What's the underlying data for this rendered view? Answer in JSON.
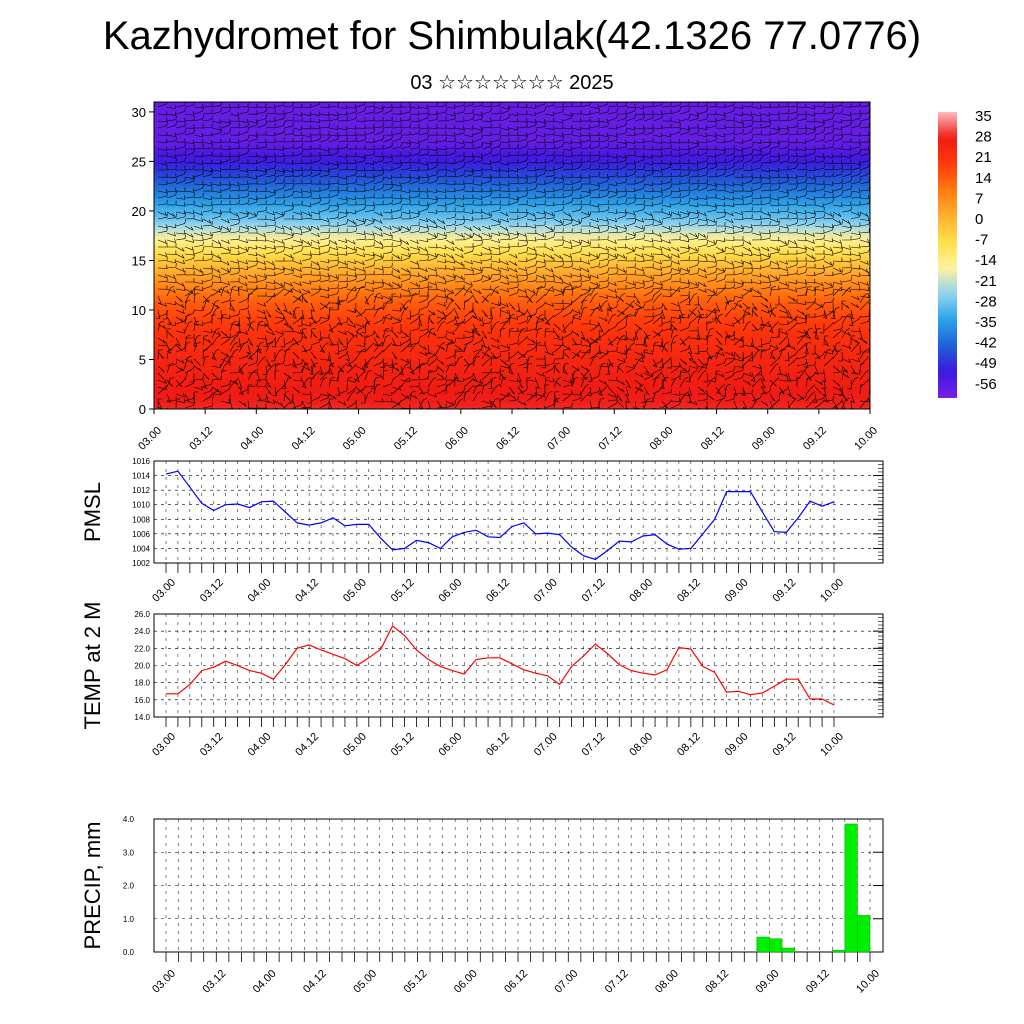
{
  "page": {
    "title": "Kazhydromet for Shimbulak(42.1326 77.0776)",
    "subtitle": "03 ☆☆☆☆☆☆☆ 2025"
  },
  "time_labels": [
    "03.00",
    "03.12",
    "04.00",
    "04.12",
    "05.00",
    "05.12",
    "06.00",
    "06.12",
    "07.00",
    "07.12",
    "08.00",
    "08.12",
    "09.00",
    "09.12",
    "10.00"
  ],
  "chart_data": [
    {
      "type": "heatmap",
      "name": "temperature-wind cross section",
      "x_ticks": [
        "03.00",
        "03.12",
        "04.00",
        "04.12",
        "05.00",
        "05.12",
        "06.00",
        "06.12",
        "07.00",
        "07.12",
        "08.00",
        "08.12",
        "09.00",
        "09.12",
        "10.00"
      ],
      "y_ticks": [
        0,
        5,
        10,
        15,
        20,
        25,
        30
      ],
      "ylim": [
        0,
        31
      ],
      "colorbar_labels": [
        "35",
        "28",
        "21",
        "14",
        "7",
        "0",
        "-7",
        "-14",
        "-21",
        "-28",
        "-35",
        "-42",
        "-49",
        "-56"
      ],
      "colorbar_range": [
        -59,
        38
      ],
      "colorscale": [
        "#7b1fe6",
        "#3b18e0",
        "#1f5fd6",
        "#2aa3e8",
        "#8fd3f0",
        "#fff2a0",
        "#ffe04a",
        "#ffb030",
        "#ff7a10",
        "#ff3a0a",
        "#ef1a14",
        "#ffbcbc"
      ],
      "height_profile_temperature": [
        {
          "height": 0,
          "value": 30
        },
        {
          "height": 4,
          "value": 27
        },
        {
          "height": 8,
          "value": 22
        },
        {
          "height": 11,
          "value": 15
        },
        {
          "height": 14,
          "value": 3
        },
        {
          "height": 16.5,
          "value": -10
        },
        {
          "height": 19,
          "value": -26
        },
        {
          "height": 22,
          "value": -38
        },
        {
          "height": 25,
          "value": -50
        },
        {
          "height": 27,
          "value": -56
        },
        {
          "height": 31,
          "value": -56
        }
      ],
      "overlay": "wind barbs"
    },
    {
      "type": "line",
      "name": "PMSL",
      "ylabel": "PMSL",
      "ylim": [
        1002,
        1016
      ],
      "y_ticks": [
        1002,
        1004,
        1006,
        1008,
        1010,
        1012,
        1014,
        1016
      ],
      "x_ticks": [
        "03.00",
        "03.12",
        "04.00",
        "04.12",
        "05.00",
        "05.12",
        "06.00",
        "06.12",
        "07.00",
        "07.12",
        "08.00",
        "08.12",
        "09.00",
        "09.12",
        "10.00"
      ],
      "color": "#0000ff",
      "series": [
        {
          "values": [
            1014.2,
            1014.6,
            1012.4,
            1010.2,
            1009.2,
            1010.0,
            1010.1,
            1009.6,
            1010.4,
            1010.5,
            1009.0,
            1007.5,
            1007.2,
            1007.5,
            1008.2,
            1007.1,
            1007.3,
            1007.3,
            1005.4,
            1003.8,
            1004.0,
            1005.1,
            1004.8,
            1004.0,
            1005.6,
            1006.2,
            1006.5,
            1005.6,
            1005.5,
            1007.0,
            1007.5,
            1006.0,
            1006.1,
            1005.9,
            1004.2,
            1003.0,
            1002.5,
            1003.7,
            1005.0,
            1004.9,
            1005.7,
            1005.9,
            1004.6,
            1003.9,
            1004.0,
            1006.0,
            1008.0,
            1011.8,
            1011.8,
            1011.8,
            1009.0,
            1006.3,
            1006.2,
            1008.2,
            1010.5,
            1009.8,
            1010.4
          ]
        }
      ]
    },
    {
      "type": "line",
      "name": "TEMP at 2 M",
      "ylabel": "TEMP at 2 M",
      "ylim": [
        14.0,
        26.0
      ],
      "y_ticks": [
        "14.0",
        "16.0",
        "18.0",
        "20.0",
        "22.0",
        "24.0",
        "26.0"
      ],
      "x_ticks": [
        "03.00",
        "03.12",
        "04.00",
        "04.12",
        "05.00",
        "05.12",
        "06.00",
        "06.12",
        "07.00",
        "07.12",
        "08.00",
        "08.12",
        "09.00",
        "09.12",
        "10.00"
      ],
      "color": "#ff0000",
      "series": [
        {
          "values": [
            16.7,
            16.7,
            17.8,
            19.4,
            19.8,
            20.5,
            20.0,
            19.4,
            19.1,
            18.4,
            20.1,
            22.0,
            22.4,
            21.8,
            21.3,
            20.8,
            20.0,
            20.9,
            21.9,
            24.6,
            23.5,
            21.8,
            20.7,
            19.9,
            19.4,
            19.0,
            20.7,
            20.9,
            20.9,
            20.2,
            19.5,
            19.1,
            18.8,
            17.8,
            19.9,
            21.1,
            22.5,
            21.4,
            20.1,
            19.4,
            19.1,
            18.9,
            19.5,
            22.1,
            21.9,
            19.9,
            19.2,
            16.9,
            17.0,
            16.6,
            16.8,
            17.6,
            18.4,
            18.4,
            16.1,
            16.1,
            15.4
          ]
        }
      ]
    },
    {
      "type": "bar",
      "name": "PRECIP, mm",
      "ylabel": "PRECIP, mm",
      "ylim": [
        0.0,
        4.0
      ],
      "y_ticks": [
        "0.0",
        "1.0",
        "2.0",
        "3.0",
        "4.0"
      ],
      "x_ticks": [
        "03.00",
        "03.12",
        "04.00",
        "04.12",
        "05.00",
        "05.12",
        "06.00",
        "06.12",
        "07.00",
        "07.12",
        "08.00",
        "08.12",
        "09.00",
        "09.12",
        "10.00"
      ],
      "color": "#00ee00",
      "bars": [
        {
          "start_hour": 141,
          "value": 0.45
        },
        {
          "start_hour": 144,
          "value": 0.4
        },
        {
          "start_hour": 147,
          "value": 0.12
        },
        {
          "start_hour": 159,
          "value": 0.05
        },
        {
          "start_hour": 162,
          "value": 3.85
        },
        {
          "start_hour": 165,
          "value": 1.1
        }
      ],
      "bar_width_hours": 3
    }
  ]
}
